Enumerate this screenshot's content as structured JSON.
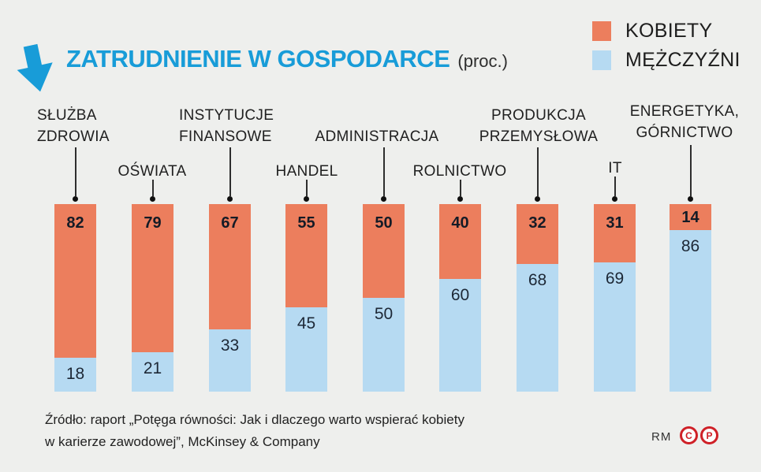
{
  "header": {
    "title": "ZATRUDNIENIE W GOSPODARCE",
    "title_suffix": "(proc.)"
  },
  "legend": {
    "items": [
      {
        "label": "KOBIETY",
        "color": "#ec7e5d"
      },
      {
        "label": "MĘŻCZYŹNI",
        "color": "#b6daf2"
      }
    ]
  },
  "chart_data": {
    "type": "bar",
    "stacked": true,
    "orientation": "vertical",
    "units": "percent",
    "title": "ZATRUDNIENIE W GOSPODARCE (proc.)",
    "categories": [
      "SŁUŻBA ZDROWIA",
      "OŚWIATA",
      "INSTYTUCJE FINANSOWE",
      "HANDEL",
      "ADMINISTRACJA",
      "ROLNICTWO",
      "PRODUKCJA PRZEMYSŁOWA",
      "IT",
      "ENERGETYKA, GÓRNICTWO"
    ],
    "category_label_lines": [
      [
        "SŁUŻBA",
        "ZDROWIA"
      ],
      [
        "OŚWIATA"
      ],
      [
        "INSTYTUCJE",
        "FINANSOWE"
      ],
      [
        "HANDEL"
      ],
      [
        "ADMINISTRACJA"
      ],
      [
        "ROLNICTWO"
      ],
      [
        "PRODUKCJA",
        "PRZEMYSŁOWA"
      ],
      [
        "IT"
      ],
      [
        "ENERGETYKA,",
        "GÓRNICTWO"
      ]
    ],
    "series": [
      {
        "name": "KOBIETY",
        "color": "#ec7e5d",
        "values": [
          82,
          79,
          67,
          55,
          50,
          40,
          32,
          31,
          14
        ]
      },
      {
        "name": "MĘŻCZYŹNI",
        "color": "#b6daf2",
        "values": [
          18,
          21,
          33,
          45,
          50,
          60,
          68,
          69,
          86
        ]
      }
    ],
    "ylim": [
      0,
      100
    ],
    "grid": false,
    "legend_position": "top-right"
  },
  "footer": {
    "source_line1": "Źródło: raport „Potęga równości: Jak i dlaczego warto wspierać kobiety",
    "source_line2": "w karierze zawodowej”, McKinsey & Company",
    "credit": "RM",
    "rights_letters": {
      "c": "C",
      "p": "P"
    }
  },
  "colors": {
    "background": "#eeefed",
    "accent_cyan": "#189cd8",
    "women_orange": "#ec7e5d",
    "men_blue": "#b6daf2",
    "rights_red": "#cf2027"
  }
}
